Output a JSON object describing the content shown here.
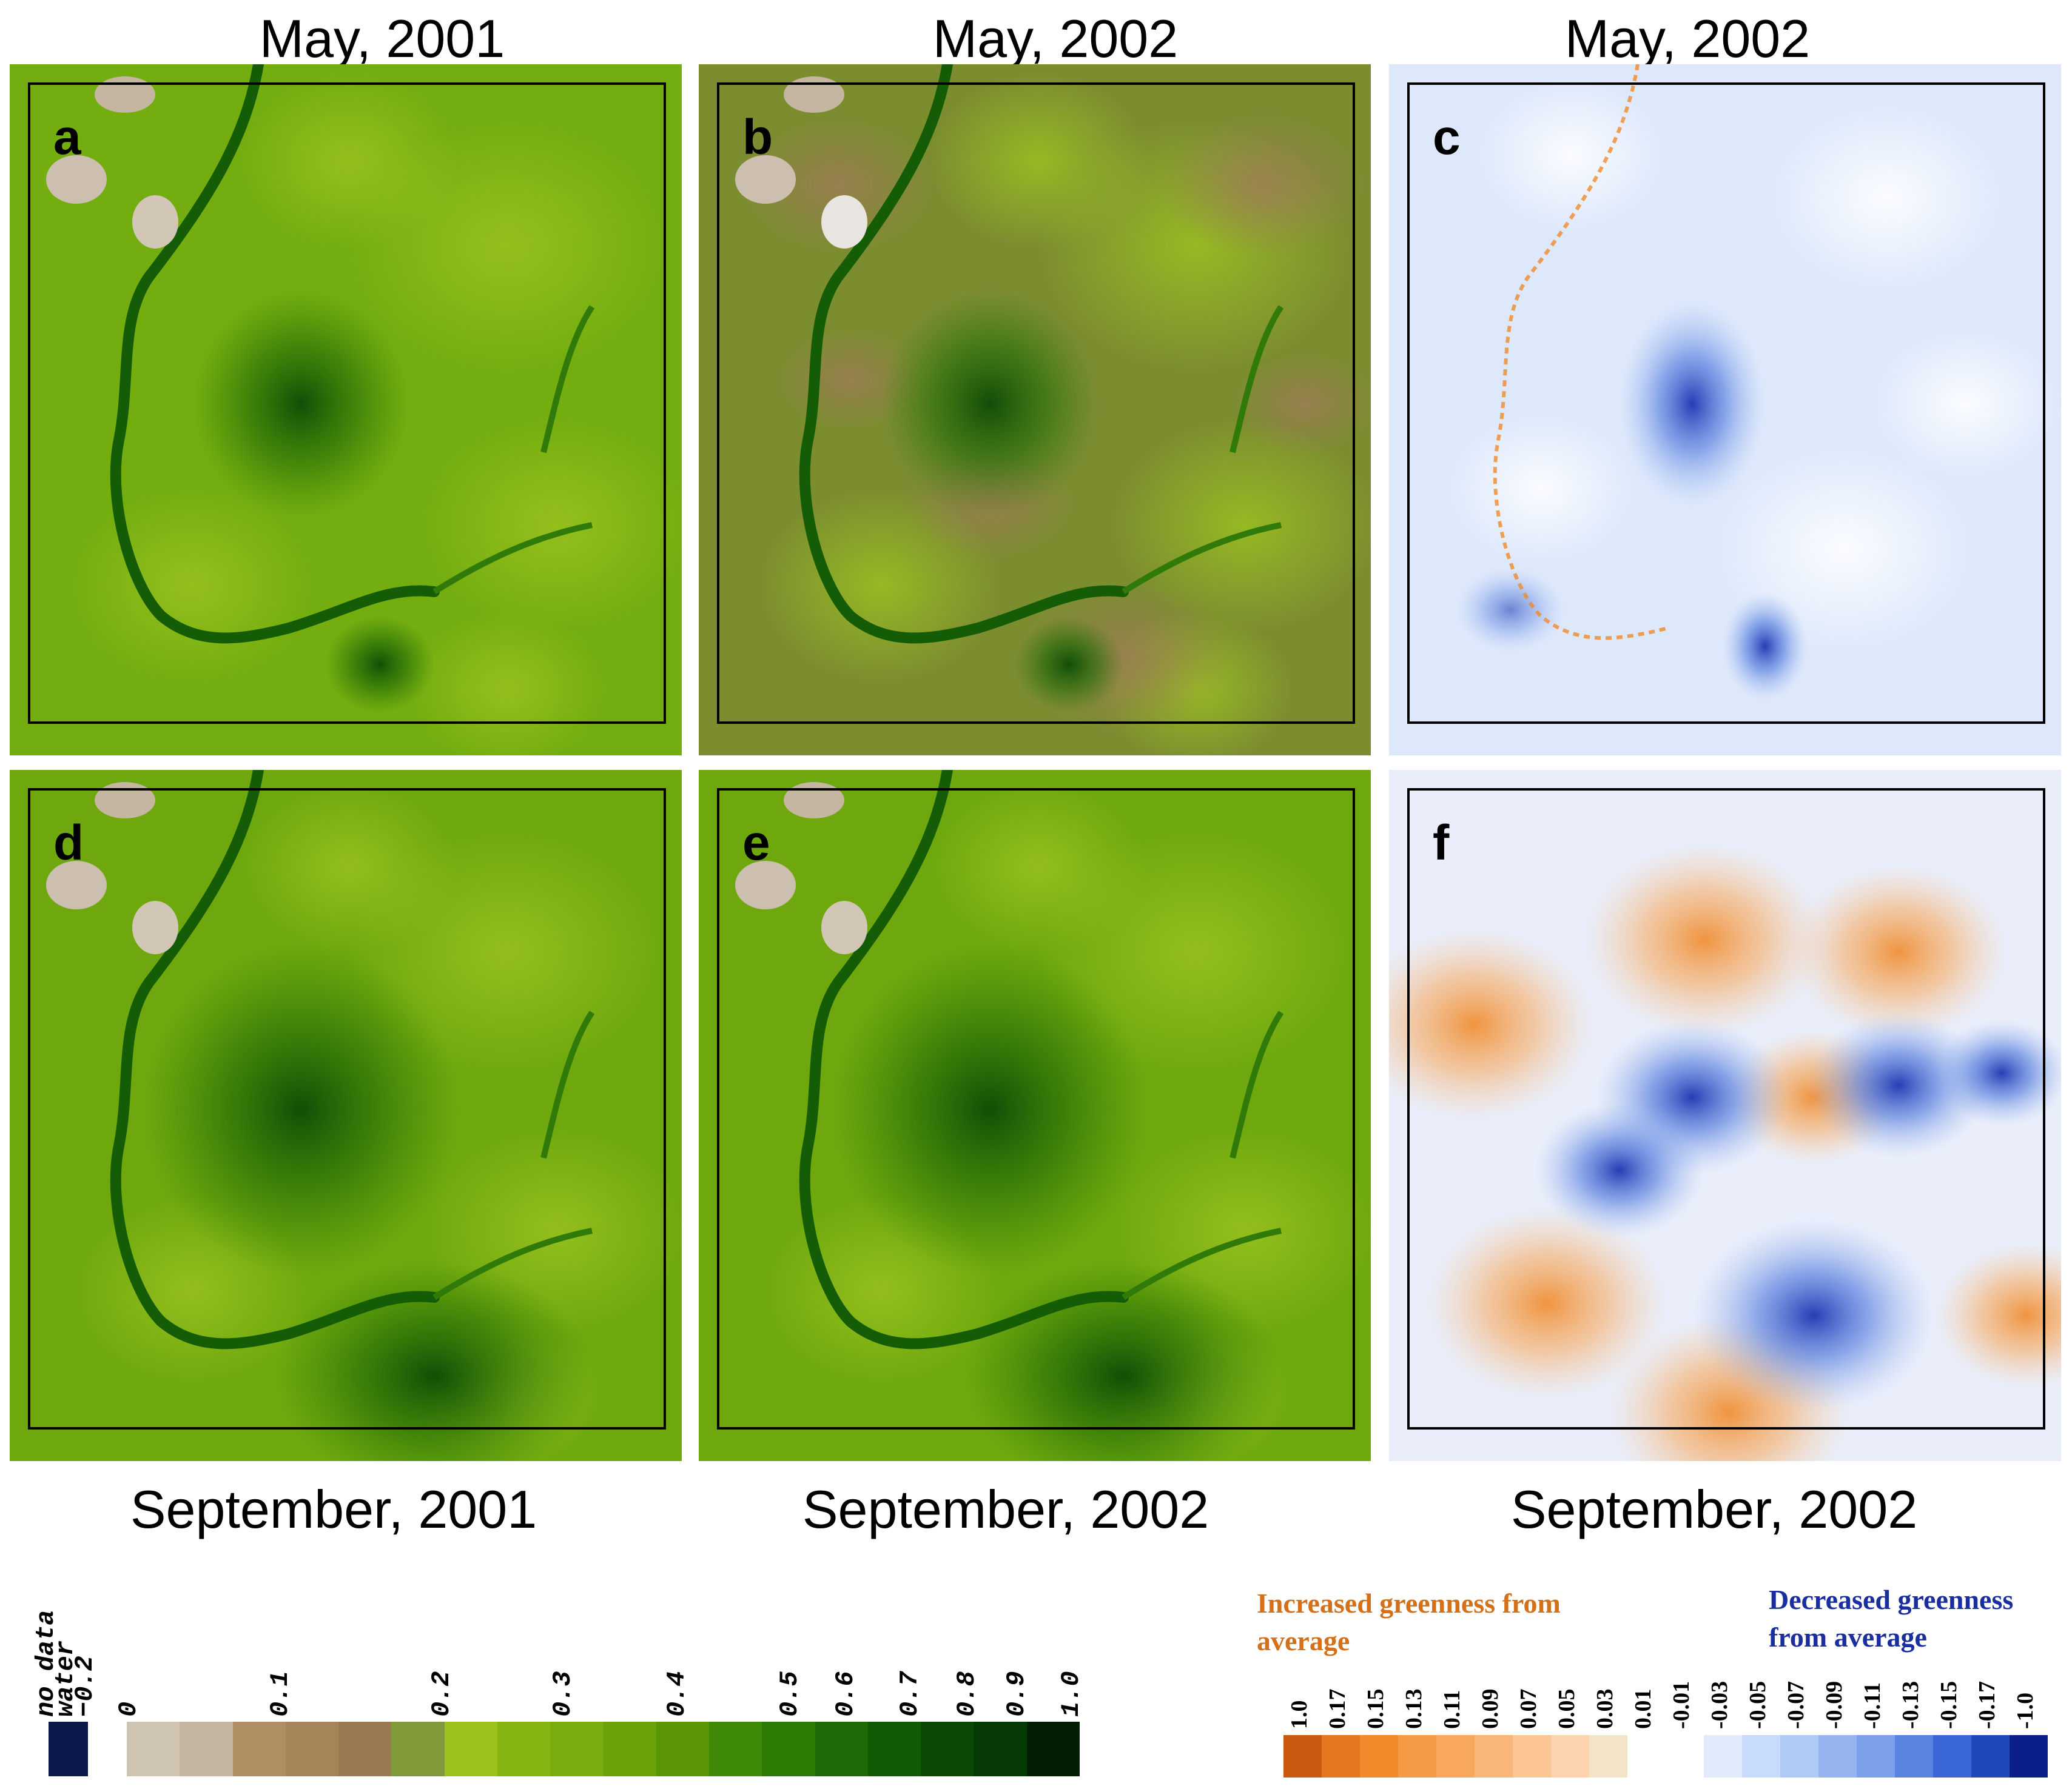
{
  "column_titles_top": [
    "May, 2001",
    "May, 2002",
    "May, 2002"
  ],
  "column_titles_bottom": [
    "September, 2001",
    "September, 2002",
    "September, 2002"
  ],
  "panels": [
    {
      "label": "a",
      "kind": "ndvi",
      "season": "may",
      "dry": false
    },
    {
      "label": "b",
      "kind": "ndvi",
      "season": "may",
      "dry": true
    },
    {
      "label": "c",
      "kind": "diff",
      "tone": "blue"
    },
    {
      "label": "d",
      "kind": "ndvi",
      "season": "sep",
      "dry": false
    },
    {
      "label": "e",
      "kind": "ndvi",
      "season": "sep",
      "dry": false
    },
    {
      "label": "f",
      "kind": "diff",
      "tone": "mixed"
    }
  ],
  "ndvi_legend": {
    "labels": [
      "no data",
      "water",
      "−0.2",
      "0",
      "0.1",
      "0.2",
      "0.3",
      "0.4",
      "0.5",
      "0.6",
      "0.7",
      "0.8",
      "0.9",
      "1.0"
    ],
    "colors": [
      "#0b1a4a",
      "#ffffff",
      "#cfc3b2",
      "#c5b6a1",
      "#b08e64",
      "#a5845a",
      "#9a7a52",
      "#809a3a",
      "#9cc21c",
      "#86b411",
      "#78ad0d",
      "#6aa208",
      "#5a9606",
      "#3f8a06",
      "#2d7a04",
      "#1f6a06",
      "#135a06",
      "#0b4a06",
      "#063a05",
      "#031e02"
    ]
  },
  "diff_legend": {
    "increased": "Increased greenness from average",
    "decreased": "Decreased greenness from average",
    "increased_color": "#d4701a",
    "decreased_color": "#1a2ea0",
    "labels": [
      "1.0",
      "0.17",
      "0.15",
      "0.13",
      "0.11",
      "0.09",
      "0.07",
      "0.05",
      "0.03",
      "0.01",
      "-0.01",
      "-0.03",
      "-0.05",
      "-0.07",
      "-0.09",
      "-0.11",
      "-0.13",
      "-0.15",
      "-0.17",
      "-1.0"
    ],
    "colors": [
      "#c95a10",
      "#e3771f",
      "#f08a2b",
      "#f59a45",
      "#f7a85c",
      "#f9b678",
      "#fbc594",
      "#fcd3ad",
      "#f3e3c8",
      "#ffffff",
      "#ffffff",
      "#e2ebfb",
      "#c9dbfa",
      "#b0caf6",
      "#96b5f0",
      "#7da0ea",
      "#5a83e0",
      "#3b66d6",
      "#1f48b8",
      "#0a1f8a"
    ]
  }
}
